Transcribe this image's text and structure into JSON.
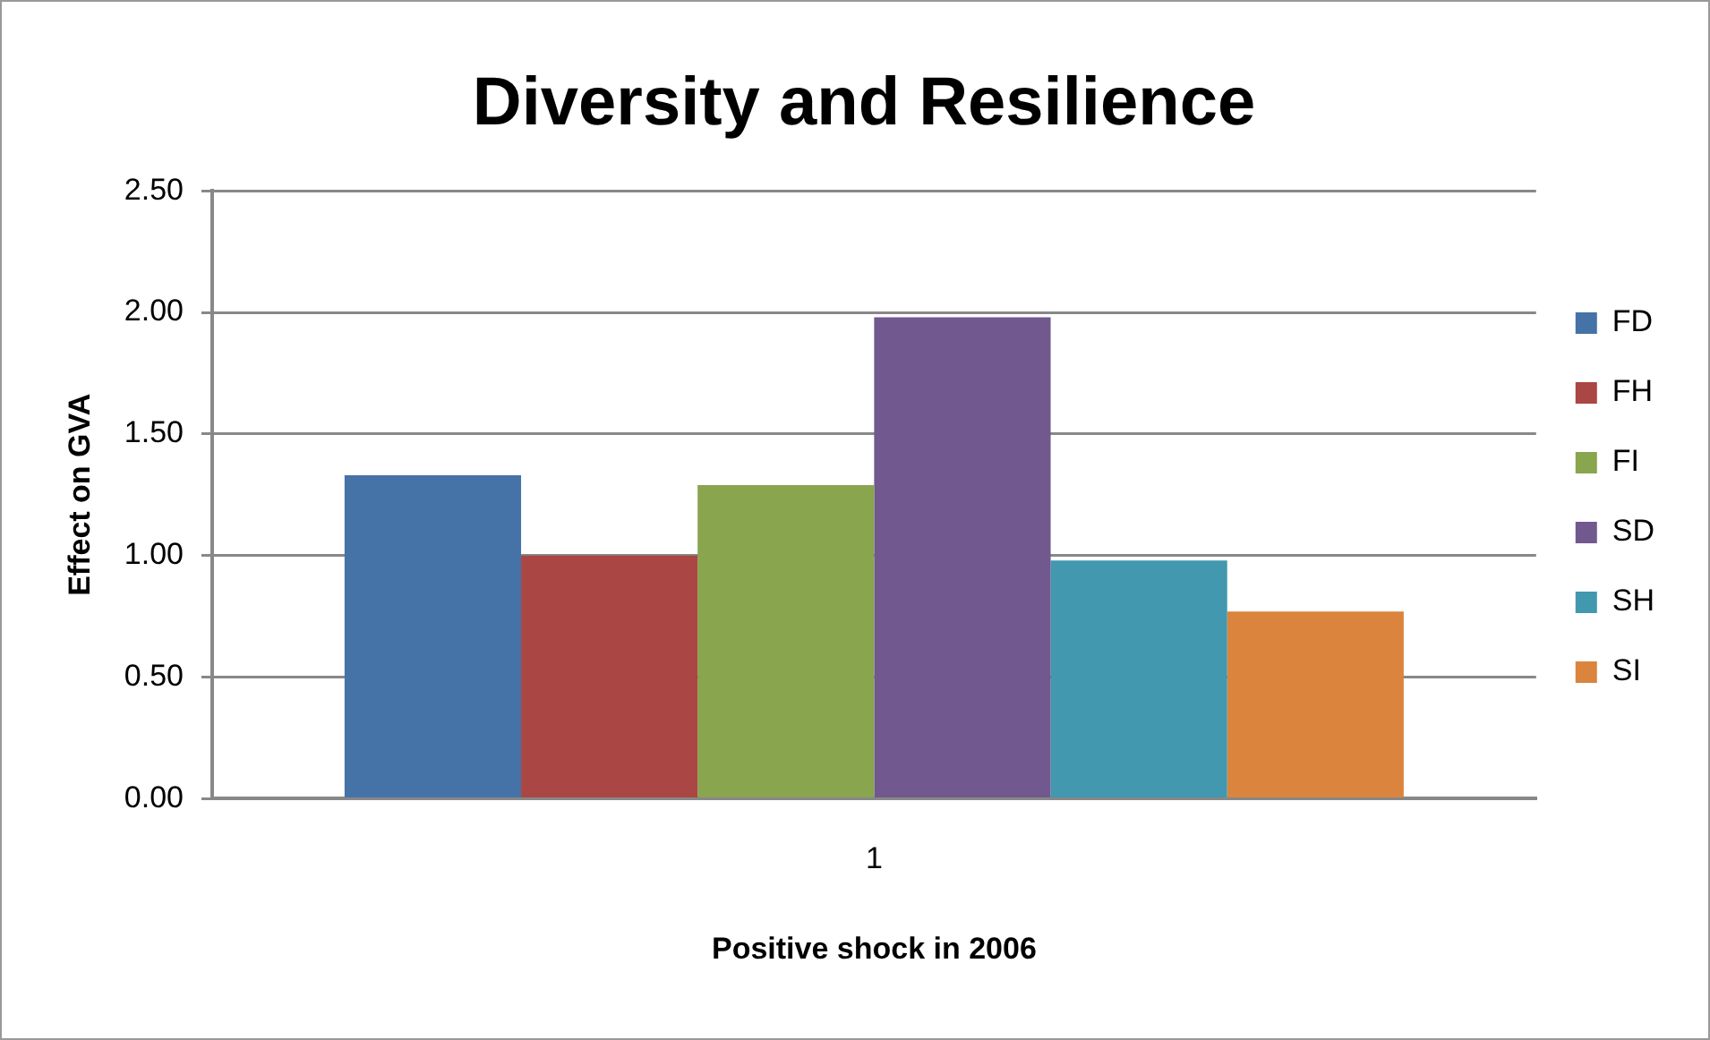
{
  "chart_data": {
    "type": "bar",
    "title": "Diversity and Resilience",
    "xlabel": "Positive shock in 2006",
    "ylabel": "Effect on GVA",
    "categories": [
      "1"
    ],
    "series": [
      {
        "name": "FD",
        "color": "#4572a7",
        "values": [
          1.33
        ]
      },
      {
        "name": "FH",
        "color": "#aa4643",
        "values": [
          1.0
        ]
      },
      {
        "name": "FI",
        "color": "#89a54e",
        "values": [
          1.29
        ]
      },
      {
        "name": "SD",
        "color": "#71588f",
        "values": [
          1.98
        ]
      },
      {
        "name": "SH",
        "color": "#4198af",
        "values": [
          0.98
        ]
      },
      {
        "name": "SI",
        "color": "#db843d",
        "values": [
          0.77
        ]
      }
    ],
    "ylim": [
      0,
      2.5
    ],
    "yticks": [
      {
        "value": 0,
        "label": "0.00"
      },
      {
        "value": 0.5,
        "label": "0.50"
      },
      {
        "value": 1,
        "label": "1.00"
      },
      {
        "value": 1.5,
        "label": "1.50"
      },
      {
        "value": 2,
        "label": "2.00"
      },
      {
        "value": 2.5,
        "label": "2.50"
      }
    ],
    "grid": "y",
    "legend": "right"
  }
}
